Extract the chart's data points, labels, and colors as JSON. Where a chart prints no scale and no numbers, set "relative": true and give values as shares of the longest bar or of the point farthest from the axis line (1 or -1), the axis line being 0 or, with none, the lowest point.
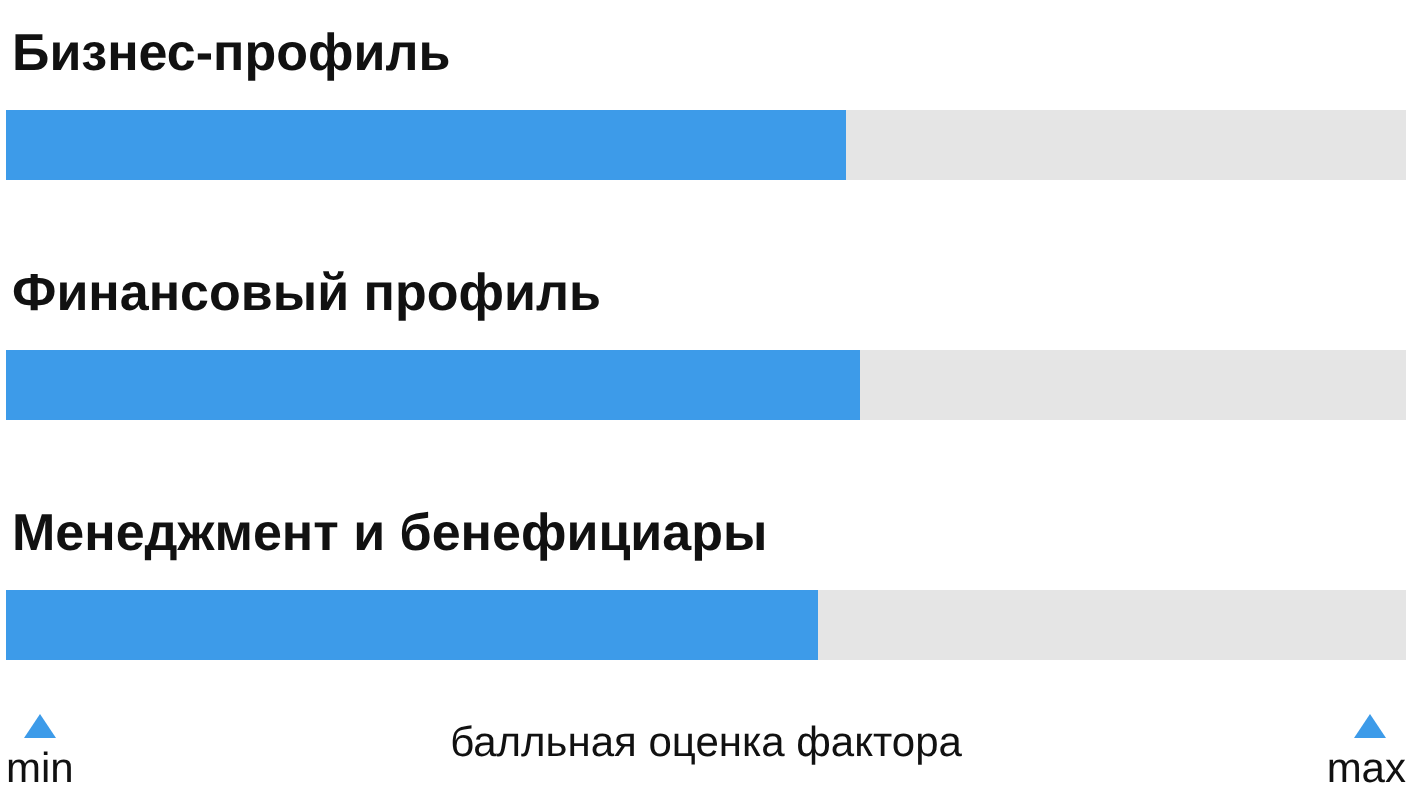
{
  "chart_data": {
    "type": "bar",
    "orientation": "horizontal",
    "stacked": true,
    "relative": true,
    "categories": [
      "Бизнес-профиль",
      "Финансовый профиль",
      "Менеджмент и бенефициары"
    ],
    "series": [
      {
        "color": "#3d9be9",
        "values": [
          0.6,
          0.61,
          0.58
        ]
      },
      {
        "color": "#e5e5e5",
        "values": [
          0.4,
          0.39,
          0.42
        ]
      }
    ],
    "xlabel": "балльная оценка фактора",
    "annotations": [
      "min",
      "max"
    ]
  }
}
